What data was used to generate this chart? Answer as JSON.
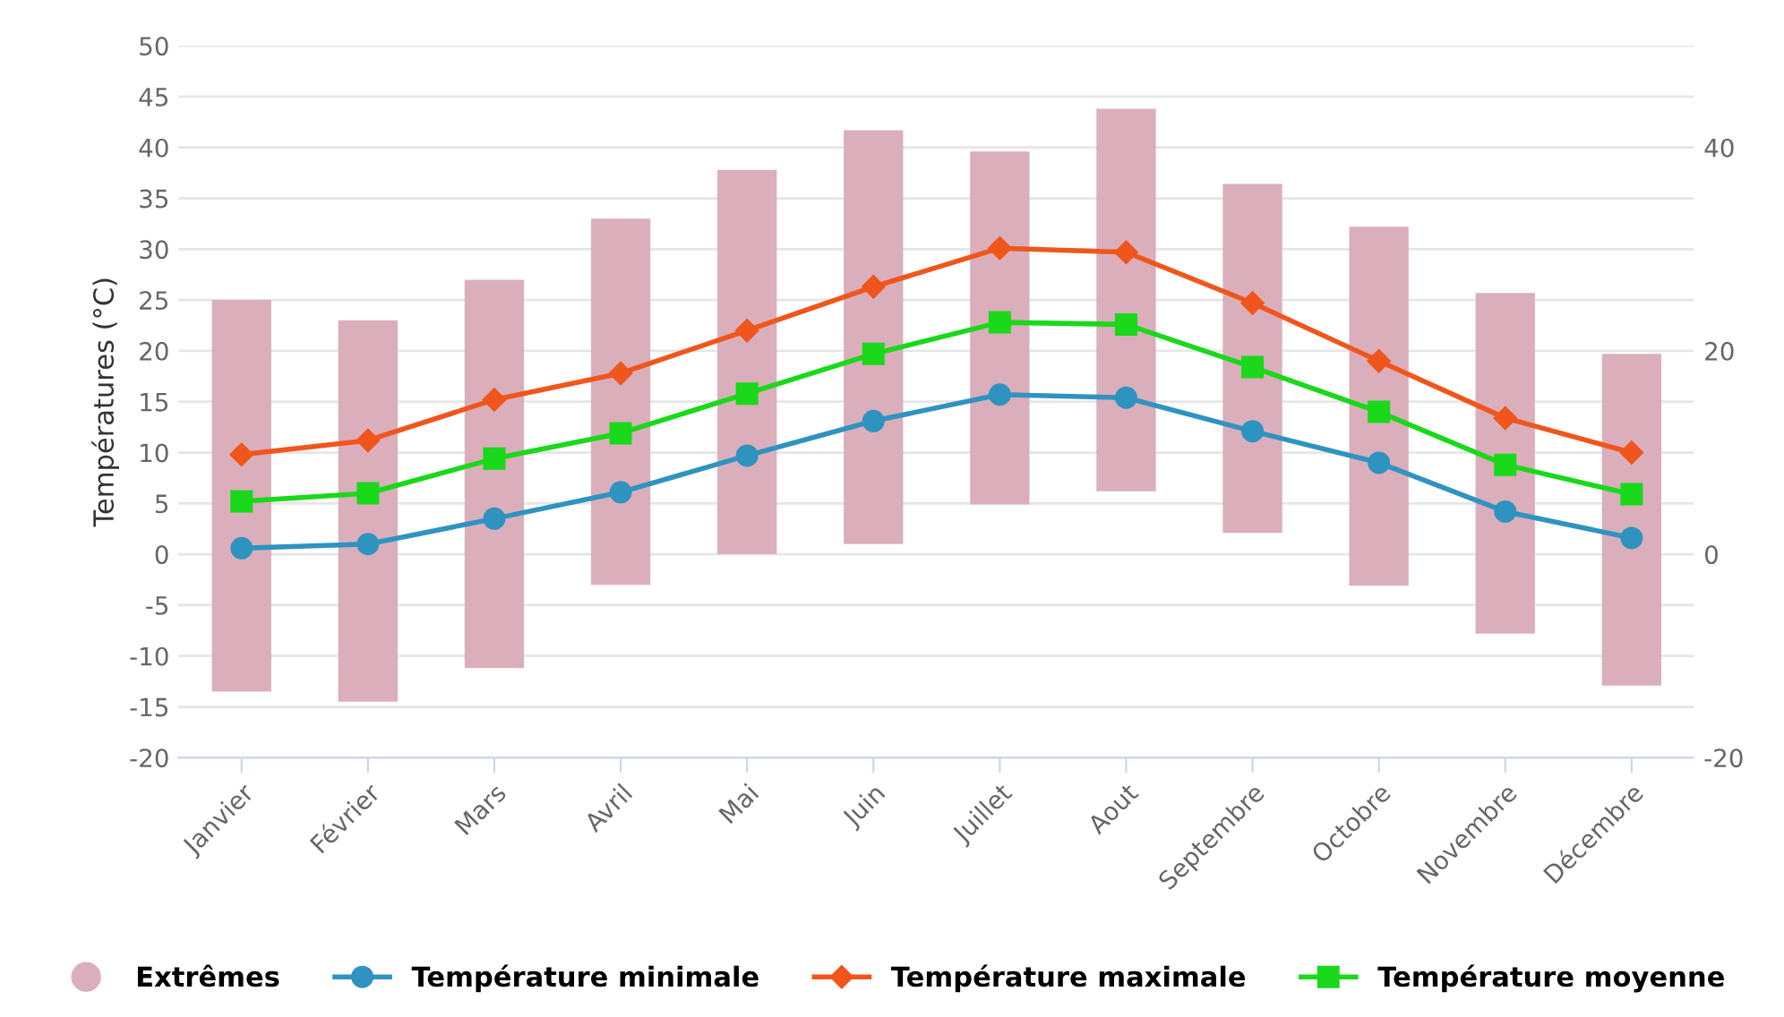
{
  "chart_data": {
    "type": "bar",
    "ylabel": "Températures (°C)",
    "categories": [
      "Janvier",
      "Février",
      "Mars",
      "Avril",
      "Mai",
      "Juin",
      "Juillet",
      "Aout",
      "Septembre",
      "Octobre",
      "Novembre",
      "Décembre"
    ],
    "series": [
      {
        "name": "Extrêmes",
        "color": "#dbaebb",
        "base": [
          -13.5,
          -14.5,
          -11.2,
          -3,
          0,
          1,
          4.9,
          6.2,
          2.1,
          -3.1,
          -7.8,
          -12.9
        ],
        "values": [
          38.5,
          37.5,
          38.2,
          36,
          37.8,
          40.7,
          34.7,
          37.6,
          34.3,
          35.3,
          33.5,
          32.6
        ]
      },
      {
        "name": "Température minimale",
        "type": "line",
        "color": "#2f93c0",
        "marker": "circle",
        "values": [
          0.6,
          1,
          3.5,
          6.1,
          9.7,
          13.1,
          15.7,
          15.4,
          12.1,
          9,
          4.2,
          1.6
        ]
      },
      {
        "name": "Température maximale",
        "type": "line",
        "color": "#f0561c",
        "marker": "diamond",
        "values": [
          9.8,
          11.2,
          15.2,
          17.8,
          22,
          26.3,
          30.1,
          29.7,
          24.7,
          19,
          13.4,
          10
        ]
      },
      {
        "name": "Température moyenne",
        "type": "line",
        "color": "#1ad81a",
        "marker": "square",
        "values": [
          5.2,
          6,
          9.4,
          11.9,
          15.8,
          19.7,
          22.8,
          22.6,
          18.4,
          14,
          8.8,
          5.9
        ]
      }
    ],
    "ylim": [
      -20,
      50
    ],
    "yticks": [
      -20,
      -15,
      -10,
      -5,
      0,
      5,
      10,
      15,
      20,
      25,
      30,
      35,
      40,
      45,
      50
    ],
    "y2lim": [
      -20,
      50
    ],
    "y2ticks": [
      -20,
      0,
      20,
      40
    ],
    "grid": "y",
    "legend": "bottom",
    "line_style": "solid"
  }
}
